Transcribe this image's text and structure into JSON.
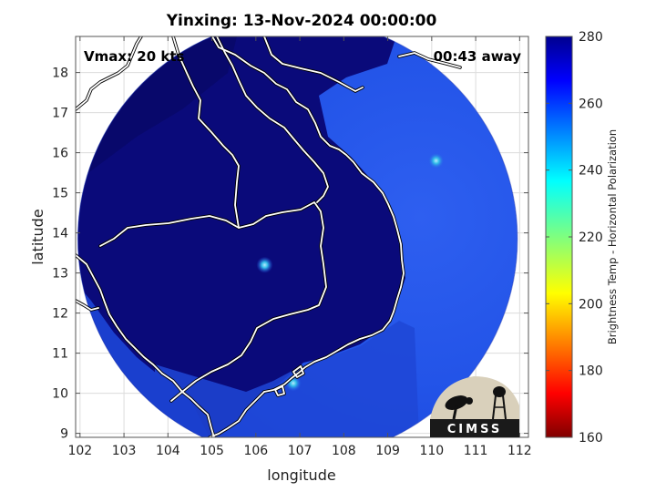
{
  "figure": {
    "title": "Yinxing: 13-Nov-2024 00:00:00",
    "vmax_label": "Vmax: 20 kts",
    "time_label": "00:43 away",
    "logo_text": "CIMSS"
  },
  "chart_data": {
    "type": "heatmap",
    "title": "Yinxing: 13-Nov-2024 00:00:00",
    "xlabel": "longitude",
    "ylabel": "latitude",
    "xlim": [
      101.9,
      112.2
    ],
    "ylim": [
      8.9,
      18.9
    ],
    "xticks": [
      102,
      103,
      104,
      105,
      106,
      107,
      108,
      109,
      110,
      111,
      112
    ],
    "yticks": [
      9,
      10,
      11,
      12,
      13,
      14,
      15,
      16,
      17,
      18
    ],
    "grid": true,
    "colorbar": {
      "label": "Brightness Temp - Horizontal Polarization",
      "range": [
        160,
        280
      ],
      "ticks": [
        160,
        180,
        200,
        220,
        240,
        260,
        280
      ],
      "colormap": "jet"
    },
    "swath_center": [
      106.95,
      13.85
    ],
    "swath_radius_deg": 5.0,
    "features": [
      {
        "name": "warm-spot-central",
        "lon": 106.2,
        "lat": 13.2,
        "value": 250
      },
      {
        "name": "warm-spot-coast",
        "lon": 106.85,
        "lat": 10.25,
        "value": 235
      },
      {
        "name": "warm-spot-east",
        "lon": 110.1,
        "lat": 15.8,
        "value": 258
      }
    ]
  },
  "colors": {
    "land_cold": "#0a0a7a",
    "ocean_warm": "#1c4be0",
    "coast_line": "#ffffff",
    "outline": "#000000"
  }
}
